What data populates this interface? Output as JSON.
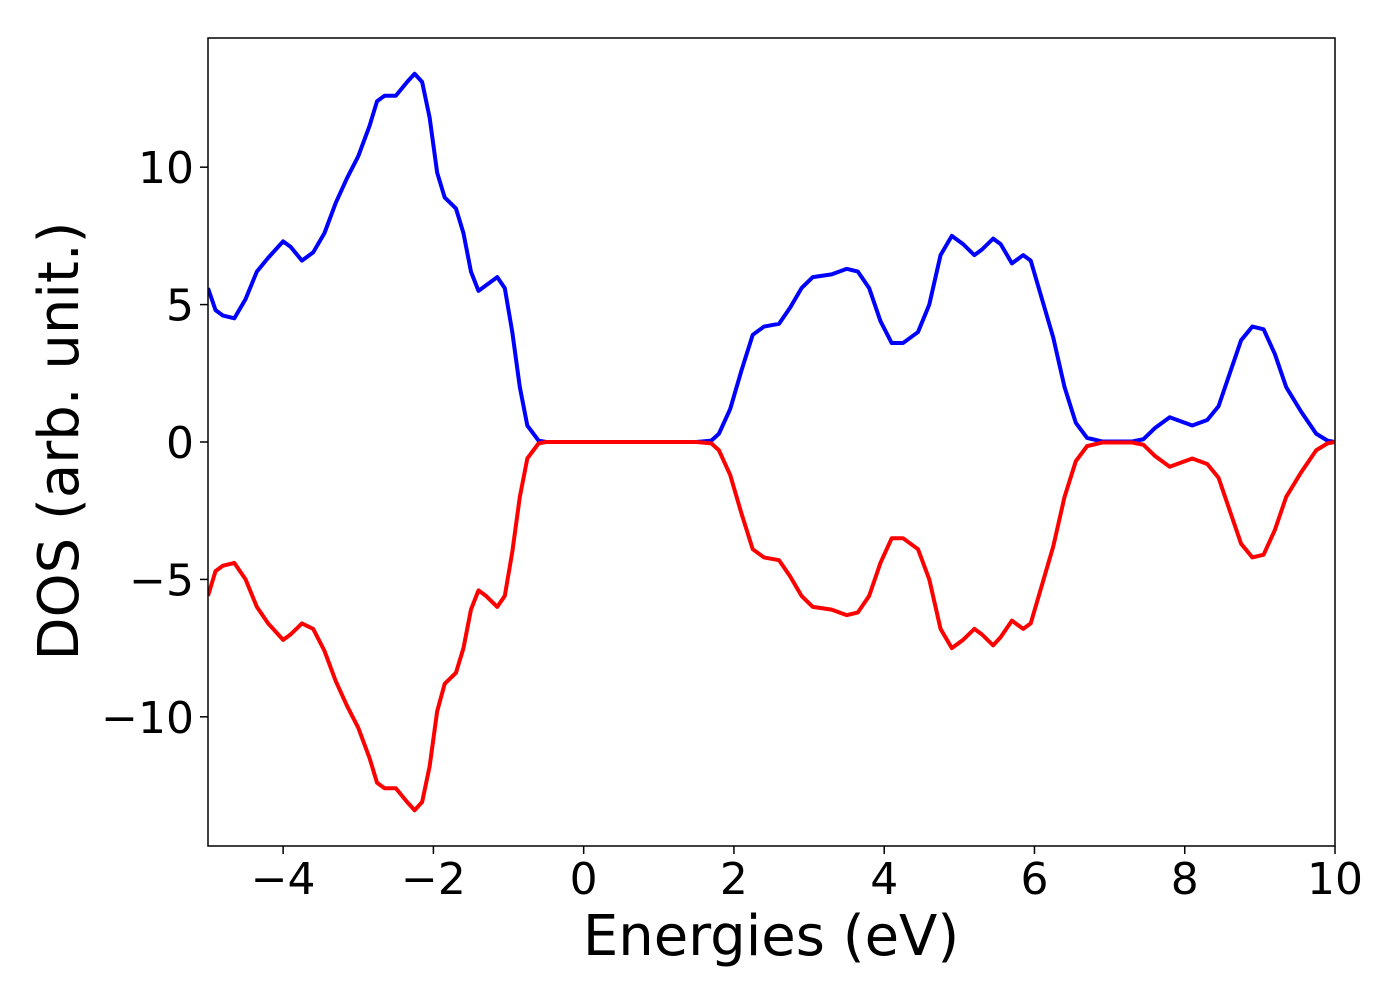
{
  "chart_data": {
    "type": "line",
    "xlabel": "Energies (eV)",
    "ylabel": "DOS (arb. unit.)",
    "x": [
      -5,
      -4.9,
      -4.8,
      -4.65,
      -4.5,
      -4.35,
      -4.2,
      -4.0,
      -3.9,
      -3.75,
      -3.6,
      -3.45,
      -3.3,
      -3.15,
      -3.0,
      -2.85,
      -2.75,
      -2.65,
      -2.5,
      -2.35,
      -2.25,
      -2.15,
      -2.05,
      -1.95,
      -1.85,
      -1.7,
      -1.6,
      -1.5,
      -1.4,
      -1.3,
      -1.15,
      -1.05,
      -0.95,
      -0.85,
      -0.75,
      -0.6,
      -0.5,
      1.5,
      1.7,
      1.8,
      1.95,
      2.1,
      2.25,
      2.4,
      2.6,
      2.75,
      2.9,
      3.05,
      3.3,
      3.5,
      3.65,
      3.8,
      3.95,
      4.1,
      4.25,
      4.45,
      4.6,
      4.75,
      4.9,
      5.05,
      5.2,
      5.3,
      5.45,
      5.55,
      5.7,
      5.85,
      5.95,
      6.1,
      6.25,
      6.4,
      6.55,
      6.7,
      6.9,
      7.3,
      7.45,
      7.6,
      7.8,
      7.9,
      8.1,
      8.3,
      8.45,
      8.6,
      8.75,
      8.9,
      9.05,
      9.2,
      9.35,
      9.55,
      9.75,
      9.9,
      10
    ],
    "series": [
      {
        "color": "#0000ff",
        "values": [
          5.6,
          4.8,
          4.6,
          4.5,
          5.2,
          6.2,
          6.7,
          7.3,
          7.1,
          6.6,
          6.9,
          7.6,
          8.7,
          9.6,
          10.4,
          11.5,
          12.4,
          12.6,
          12.6,
          13.1,
          13.4,
          13.1,
          11.8,
          9.8,
          8.9,
          8.5,
          7.6,
          6.2,
          5.5,
          5.7,
          6.0,
          5.6,
          4.0,
          2.0,
          0.6,
          0.05,
          0,
          0,
          0.05,
          0.3,
          1.2,
          2.6,
          3.9,
          4.2,
          4.3,
          4.9,
          5.6,
          6.0,
          6.1,
          6.3,
          6.2,
          5.6,
          4.4,
          3.6,
          3.6,
          4.0,
          5.0,
          6.8,
          7.5,
          7.2,
          6.8,
          7.0,
          7.4,
          7.2,
          6.5,
          6.8,
          6.6,
          5.2,
          3.8,
          2.0,
          0.7,
          0.15,
          0.02,
          0.02,
          0.1,
          0.5,
          0.9,
          0.8,
          0.6,
          0.8,
          1.3,
          2.5,
          3.7,
          4.2,
          4.1,
          3.2,
          2.0,
          1.1,
          0.3,
          0.05,
          0
        ]
      },
      {
        "color": "#ff0000",
        "values": [
          -5.6,
          -4.7,
          -4.5,
          -4.4,
          -5.0,
          -6.0,
          -6.6,
          -7.2,
          -7.0,
          -6.6,
          -6.8,
          -7.6,
          -8.7,
          -9.6,
          -10.4,
          -11.5,
          -12.4,
          -12.6,
          -12.6,
          -13.1,
          -13.4,
          -13.1,
          -11.8,
          -9.8,
          -8.8,
          -8.4,
          -7.5,
          -6.1,
          -5.4,
          -5.6,
          -6.0,
          -5.6,
          -4.0,
          -2.0,
          -0.6,
          -0.05,
          0,
          0,
          -0.05,
          -0.3,
          -1.2,
          -2.6,
          -3.9,
          -4.2,
          -4.3,
          -4.9,
          -5.6,
          -6.0,
          -6.1,
          -6.3,
          -6.2,
          -5.6,
          -4.4,
          -3.5,
          -3.5,
          -3.9,
          -5.0,
          -6.8,
          -7.5,
          -7.2,
          -6.8,
          -7.0,
          -7.4,
          -7.1,
          -6.5,
          -6.8,
          -6.6,
          -5.2,
          -3.8,
          -2.0,
          -0.7,
          -0.15,
          -0.02,
          -0.02,
          -0.1,
          -0.5,
          -0.9,
          -0.8,
          -0.6,
          -0.8,
          -1.3,
          -2.5,
          -3.7,
          -4.2,
          -4.1,
          -3.2,
          -2.0,
          -1.1,
          -0.3,
          -0.05,
          0
        ]
      }
    ],
    "xlim": [
      -5,
      10
    ],
    "ylim": [
      -14.7,
      14.7
    ],
    "xticks": [
      {
        "value": -4,
        "label": "−4"
      },
      {
        "value": -2,
        "label": "−2"
      },
      0,
      2,
      4,
      6,
      8,
      10
    ],
    "yticks": [
      {
        "value": -10,
        "label": "−10"
      },
      {
        "value": -5,
        "label": "−5"
      },
      0,
      5,
      10
    ],
    "grid": false
  }
}
